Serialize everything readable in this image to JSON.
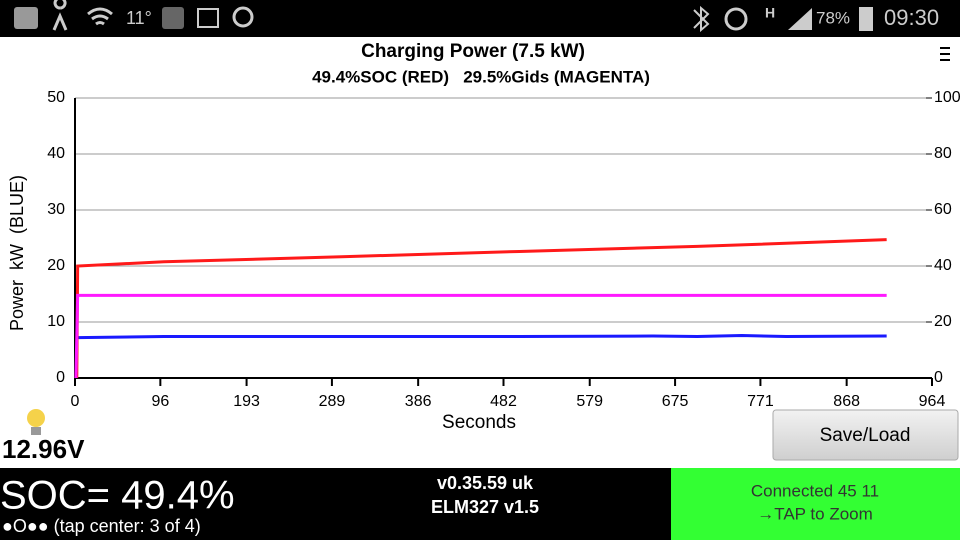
{
  "status_bar": {
    "temperature": "11°",
    "network": "H",
    "battery": "78%",
    "time": "09:30"
  },
  "chart_data": {
    "type": "line",
    "title": "Charging Power (7.5 kW)",
    "subtitle": "49.4%SOC (RED)   29.5%Gids (MAGENTA)",
    "y_label": "Power  kW  (BLUE)",
    "x_label": "Seconds",
    "xlim": [
      0,
      964
    ],
    "xticks": [
      0,
      96,
      193,
      289,
      386,
      482,
      579,
      675,
      771,
      868,
      964
    ],
    "ylim": [
      0,
      50
    ],
    "yticks": [
      0,
      10,
      20,
      30,
      40,
      50
    ],
    "y2lim": [
      0,
      100
    ],
    "y2ticks": [
      0,
      20,
      40,
      60,
      80,
      100
    ],
    "grid": true,
    "series": [
      {
        "color": "#1a1aff",
        "x": [
          3,
          100,
          300,
          500,
          650,
          700,
          750,
          800,
          913
        ],
        "values": [
          7.2,
          7.4,
          7.4,
          7.4,
          7.5,
          7.4,
          7.6,
          7.4,
          7.5
        ]
      },
      {
        "color": "#ff1a1a",
        "axis": "y2",
        "x": [
          2,
          3,
          100,
          300,
          500,
          700,
          913
        ],
        "values": [
          0,
          40,
          41.5,
          43.3,
          45.2,
          47,
          49.4
        ]
      },
      {
        "color": "#ff1aff",
        "axis": "y2",
        "x": [
          1,
          3,
          913
        ],
        "values": [
          0,
          29.5,
          29.5
        ]
      }
    ]
  },
  "voltage": "12.96V",
  "button": "Save/Load",
  "soc": "SOC= 49.4%",
  "page_indicator": "●O●● (tap center: 3 of 4)",
  "version": "v0.35.59 uk",
  "adapter": "ELM327 v1.5",
  "connection": "Connected 45 11",
  "zoom_hint": "→TAP to Zoom"
}
